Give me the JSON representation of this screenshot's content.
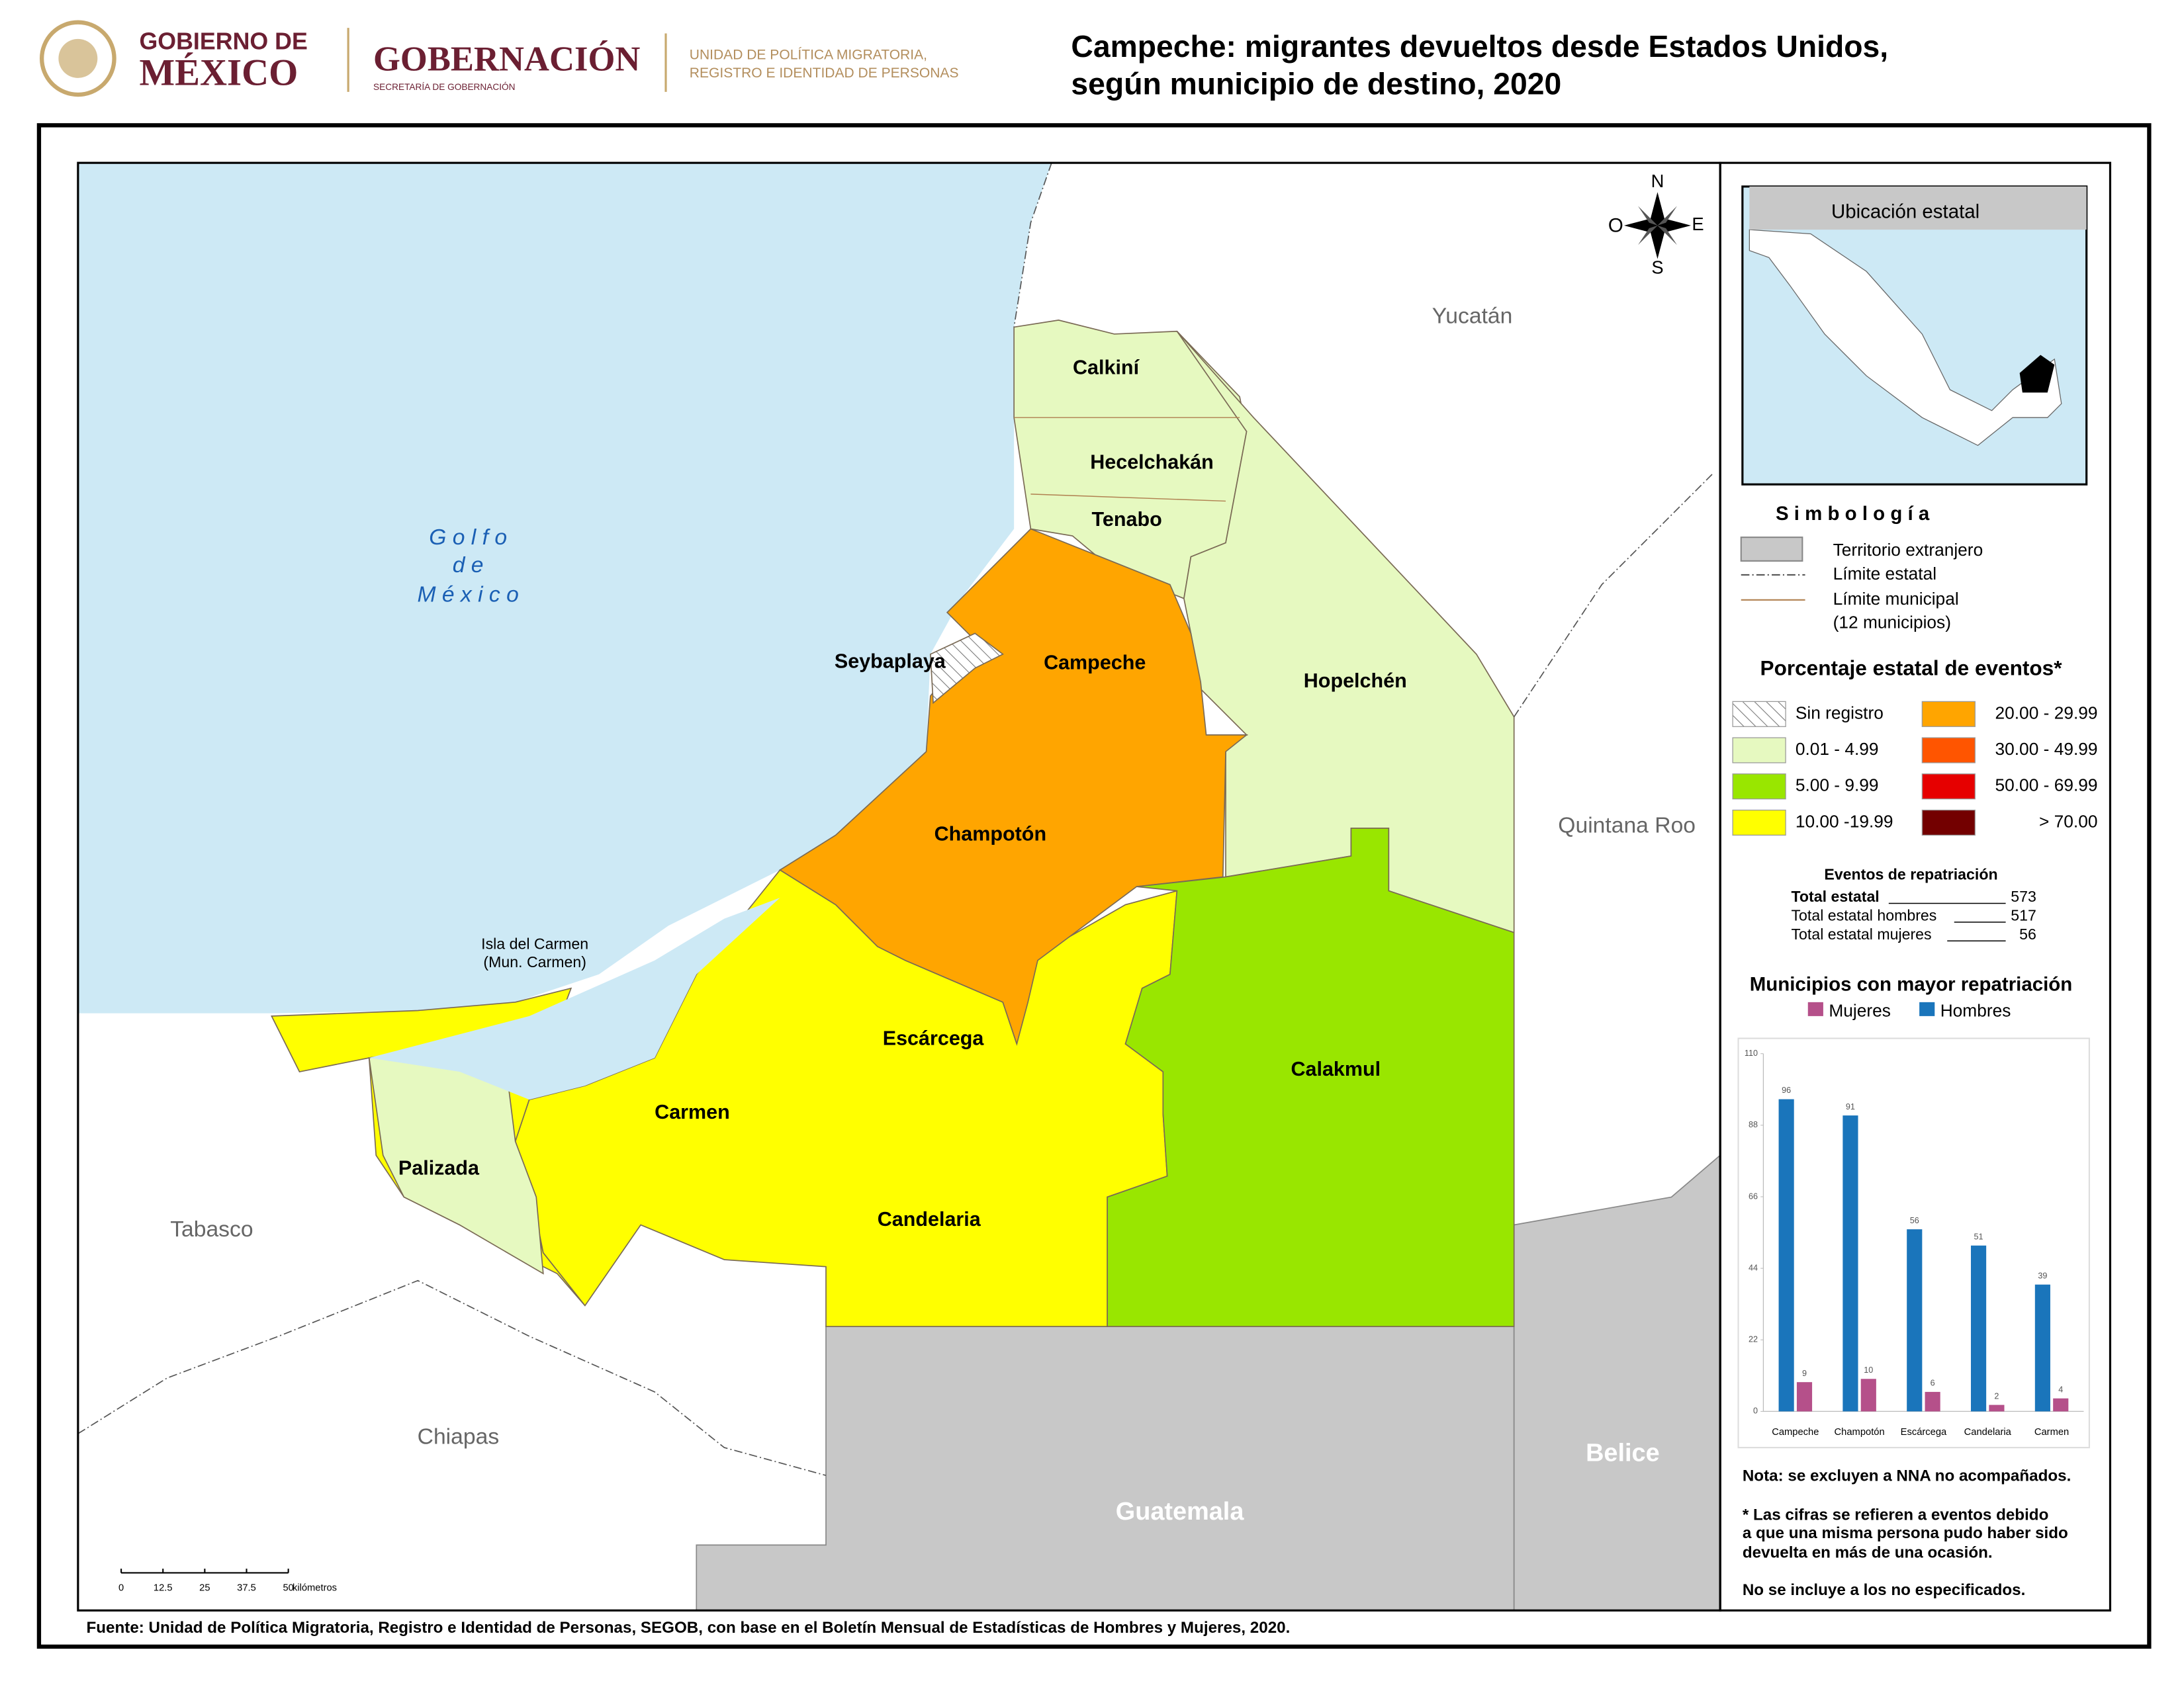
{
  "header": {
    "gov_line1": "GOBIERNO DE",
    "gov_line2": "MÉXICO",
    "ministry": "GOBERNACIÓN",
    "ministry_sub": "SECRETARÍA DE GOBERNACIÓN",
    "unit_line1": "UNIDAD DE POLÍTICA MIGRATORIA,",
    "unit_line2": "REGISTRO E IDENTIDAD DE PERSONAS",
    "title_line1": "Campeche: migrantes devueltos desde Estados Unidos,",
    "title_line2": "según municipio de destino, 2020"
  },
  "map": {
    "sea": [
      "G o l f o",
      "d e",
      "M é x i c o"
    ],
    "neighbors": [
      "Yucatán",
      "Quintana Roo",
      "Tabasco",
      "Chiapas"
    ],
    "countries": [
      "Belice",
      "Guatemala"
    ],
    "municipalities": [
      "Calkiní",
      "Hecelchakán",
      "Tenabo",
      "Campeche",
      "Seybaplaya",
      "Hopelchén",
      "Champotón",
      "Escárcega",
      "Calakmul",
      "Carmen",
      "Candelaria",
      "Palizada"
    ],
    "island_line1": "Isla del Carmen",
    "island_line2": "(Mun. Carmen)",
    "compass": [
      "N",
      "S",
      "O",
      "E"
    ],
    "scale_bar": {
      "ticks": [
        0,
        12.5,
        25,
        37.5,
        50
      ],
      "unit": "kilómetros"
    }
  },
  "inset": {
    "title": "Ubicación estatal"
  },
  "symbology": {
    "title": "S i m b o l o g í a",
    "items": [
      "Territorio extranjero",
      "Límite estatal",
      "Límite municipal",
      "(12 municipios)"
    ]
  },
  "classes": {
    "title": "Porcentaje estatal de eventos*",
    "items": [
      {
        "label": "Sin registro",
        "color": "hatch"
      },
      {
        "label": "0.01  - 4.99",
        "color": "#e6f9c0"
      },
      {
        "label": "5.00  - 9.99",
        "color": "#99e600"
      },
      {
        "label": "10.00 -19.99",
        "color": "#ffff00"
      },
      {
        "label": "20.00 - 29.99",
        "color": "#ffa500"
      },
      {
        "label": "30.00 - 49.99",
        "color": "#ff5500"
      },
      {
        "label": "50.00 - 69.99",
        "color": "#e60000"
      },
      {
        "label": "> 70.00",
        "color": "#730000"
      }
    ]
  },
  "totals": {
    "title": "Eventos de repatriación",
    "rows": [
      {
        "label": "Total estatal",
        "value": 573
      },
      {
        "label": "Total estatal hombres",
        "value": 517
      },
      {
        "label": "Total estatal mujeres",
        "value": 56
      }
    ]
  },
  "chart_data": {
    "type": "bar",
    "title": "Municipios con mayor repatriación",
    "categories": [
      "Campeche",
      "Champotón",
      "Escárcega",
      "Candelaria",
      "Carmen"
    ],
    "series": [
      {
        "name": "Mujeres",
        "color": "#b5508a",
        "values": [
          9,
          10,
          6,
          2,
          4
        ]
      },
      {
        "name": "Hombres",
        "color": "#1a75bb",
        "values": [
          96,
          91,
          56,
          51,
          39
        ]
      }
    ],
    "ylim": [
      0,
      110
    ],
    "yticks": [
      0,
      22,
      44,
      66,
      88,
      110
    ],
    "grid": false
  },
  "notes": [
    "Nota: se excluyen a NNA no acompañados.",
    "* Las cifras se refieren a eventos debido",
    "a que una misma persona pudo haber sido",
    "devuelta en más de una ocasión.",
    "No se incluye a los no especificados."
  ],
  "source": "Fuente: Unidad de Política Migratoria, Registro e Identidad de Personas, SEGOB, con base en el Boletín Mensual de Estadísticas de Hombres y Mujeres, 2020."
}
